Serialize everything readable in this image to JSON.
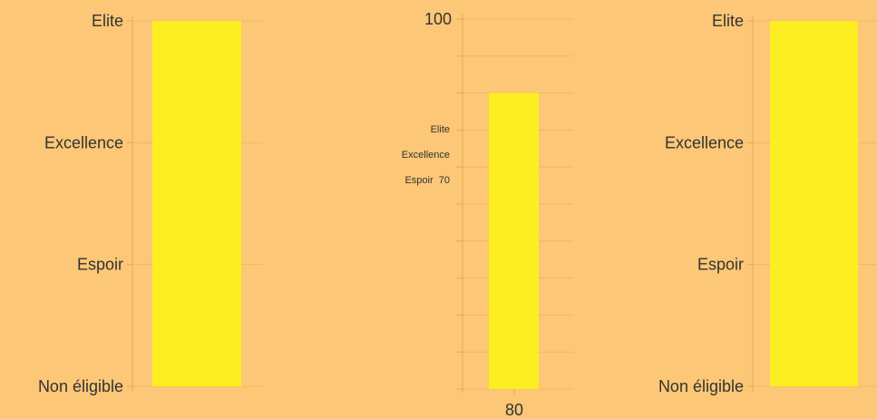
{
  "colors": {
    "background": "#fcc776",
    "bar": "#fdee21",
    "axis": "#e3a95a",
    "grid": "#efb865",
    "text": "#333333"
  },
  "chart_data": [
    {
      "type": "bar",
      "scale": "ordinal",
      "y_tick_labels": [
        "Non éligible",
        "Espoir",
        "Excellence",
        "Elite"
      ],
      "values": [
        "Elite"
      ],
      "grid": true
    },
    {
      "type": "bar",
      "y_top_label": "100",
      "threshold_labels": [
        "Elite",
        "Excellence",
        "Espoir  70"
      ],
      "x_tick_labels": [
        "80"
      ],
      "values": [
        80
      ],
      "ylim": [
        0,
        100
      ],
      "grid": true
    },
    {
      "type": "bar",
      "scale": "ordinal",
      "y_tick_labels": [
        "Non éligible",
        "Espoir",
        "Excellence",
        "Elite"
      ],
      "values": [
        "Elite"
      ],
      "grid": true
    }
  ]
}
